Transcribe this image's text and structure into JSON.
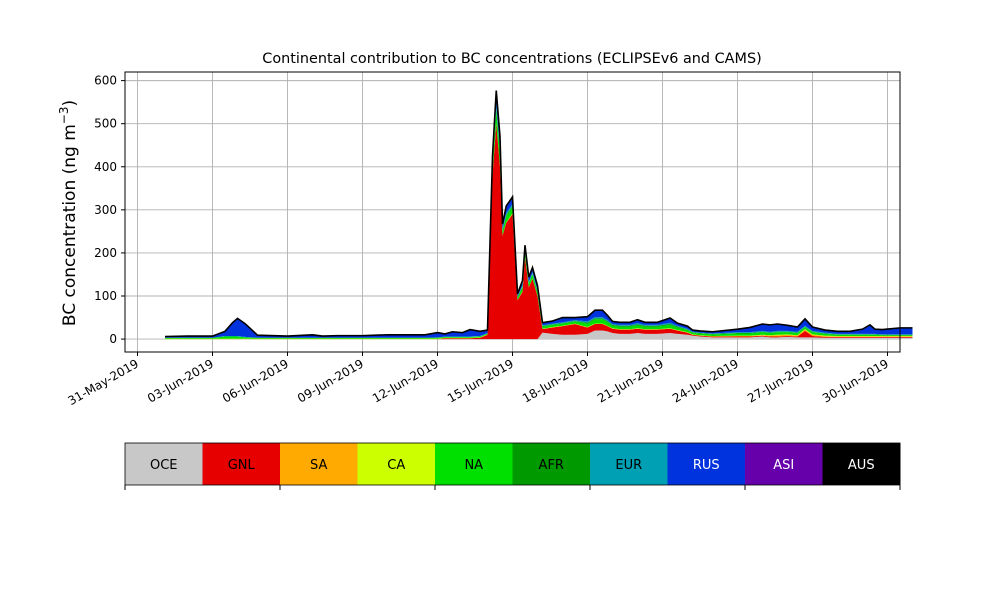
{
  "chart_data": {
    "type": "area",
    "stacked": true,
    "title": "Continental contribution to BC concentrations (ECLIPSEv6 and CAMS)",
    "ylabel": "BC concentration (ng m",
    "ylabel_sup": "−3",
    "ylabel_close": ")",
    "xlabel": "",
    "grid": true,
    "ylim": [
      -30,
      620
    ],
    "yticks": [
      0,
      100,
      200,
      300,
      400,
      500,
      600
    ],
    "xlim": [
      -0.5,
      30.5
    ],
    "xticks": [
      {
        "day": 0,
        "label": "31-May-2019"
      },
      {
        "day": 3,
        "label": "03-Jun-2019"
      },
      {
        "day": 6,
        "label": "06-Jun-2019"
      },
      {
        "day": 9,
        "label": "09-Jun-2019"
      },
      {
        "day": 12,
        "label": "12-Jun-2019"
      },
      {
        "day": 15,
        "label": "15-Jun-2019"
      },
      {
        "day": 18,
        "label": "18-Jun-2019"
      },
      {
        "day": 21,
        "label": "21-Jun-2019"
      },
      {
        "day": 24,
        "label": "24-Jun-2019"
      },
      {
        "day": 27,
        "label": "27-Jun-2019"
      },
      {
        "day": 30,
        "label": "30-Jun-2019"
      }
    ],
    "x_days": [
      1.1,
      2.0,
      3.0,
      3.5,
      3.8,
      4.0,
      4.3,
      4.8,
      6.0,
      7.0,
      7.4,
      8.0,
      9.0,
      10.0,
      11.0,
      11.5,
      12.0,
      12.3,
      12.6,
      13.0,
      13.3,
      13.7,
      14.0,
      14.2,
      14.35,
      14.5,
      14.6,
      14.75,
      15.0,
      15.2,
      15.4,
      15.5,
      15.65,
      15.8,
      16.0,
      16.2,
      16.6,
      17.0,
      17.5,
      18.0,
      18.3,
      18.6,
      18.8,
      19.0,
      19.3,
      19.7,
      20.0,
      20.3,
      20.8,
      21.3,
      21.6,
      22.0,
      22.2,
      22.5,
      23.0,
      24.0,
      24.5,
      25.0,
      25.3,
      25.6,
      26.0,
      26.4,
      26.7,
      27.0,
      27.5,
      28.0,
      28.5,
      29.0,
      29.3,
      29.5,
      29.8,
      30.5,
      31.0
    ],
    "series": [
      {
        "name": "OCE",
        "color": "#c8c8c8",
        "values": [
          0,
          0,
          0,
          0,
          0,
          0,
          0,
          0,
          0,
          0,
          0,
          0,
          0,
          0,
          0,
          0,
          0,
          0,
          0,
          0,
          0,
          0,
          0,
          0,
          0,
          0,
          0,
          0,
          0,
          0,
          0,
          0,
          0,
          0,
          0,
          15,
          12,
          10,
          10,
          12,
          20,
          20,
          18,
          14,
          12,
          12,
          14,
          12,
          12,
          14,
          12,
          10,
          8,
          6,
          4,
          4,
          4,
          6,
          4,
          4,
          5,
          4,
          4,
          4,
          3,
          3,
          3,
          3,
          3,
          3,
          3,
          3,
          3
        ]
      },
      {
        "name": "GNL",
        "color": "#e60000",
        "values": [
          0,
          0,
          0,
          0,
          0,
          0,
          0,
          0,
          0,
          0,
          0,
          0,
          0,
          0,
          0,
          0,
          0,
          2,
          2,
          2,
          2,
          3,
          10,
          380,
          500,
          400,
          240,
          270,
          290,
          90,
          110,
          190,
          120,
          140,
          100,
          8,
          15,
          20,
          25,
          15,
          15,
          15,
          12,
          10,
          10,
          10,
          10,
          10,
          10,
          10,
          8,
          5,
          2,
          2,
          2,
          2,
          2,
          2,
          2,
          2,
          2,
          2,
          15,
          3,
          2,
          2,
          2,
          2,
          2,
          2,
          2,
          2,
          2
        ]
      },
      {
        "name": "SA",
        "color": "#ffaa00",
        "values": [
          0,
          0,
          0,
          0,
          0,
          0,
          0,
          0,
          0,
          0,
          0,
          0,
          0,
          0,
          0,
          0,
          0,
          0,
          0,
          0,
          0,
          0,
          0,
          0,
          0,
          0,
          0,
          0,
          0,
          0,
          0,
          0,
          0,
          0,
          0,
          0,
          0,
          0,
          0,
          0,
          0,
          0,
          0,
          0,
          0,
          0,
          0,
          0,
          0,
          0,
          0,
          0,
          0,
          0,
          0,
          1,
          1,
          1,
          2,
          3,
          3,
          2,
          3,
          3,
          2,
          1,
          1,
          1,
          1,
          1,
          1,
          1,
          1
        ]
      },
      {
        "name": "CA",
        "color": "#ccff00",
        "values": [
          1,
          1,
          1,
          1,
          1,
          1,
          1,
          1,
          1,
          1,
          1,
          1,
          1,
          1,
          1,
          1,
          1,
          1,
          1,
          1,
          1,
          1,
          1,
          1,
          2,
          2,
          1,
          1,
          2,
          1,
          1,
          1,
          1,
          1,
          1,
          1,
          1,
          1,
          1,
          1,
          1,
          1,
          1,
          1,
          1,
          1,
          1,
          1,
          1,
          1,
          1,
          1,
          1,
          1,
          1,
          1,
          1,
          1,
          1,
          1,
          1,
          1,
          1,
          1,
          1,
          1,
          1,
          1,
          1,
          1,
          1,
          1,
          1
        ]
      },
      {
        "name": "NA",
        "color": "#00e000",
        "values": [
          2,
          2,
          2,
          5,
          5,
          5,
          3,
          2,
          2,
          2,
          2,
          2,
          2,
          2,
          2,
          2,
          2,
          2,
          2,
          2,
          2,
          2,
          2,
          20,
          30,
          30,
          10,
          15,
          15,
          5,
          10,
          10,
          8,
          10,
          8,
          5,
          5,
          5,
          5,
          8,
          10,
          10,
          8,
          6,
          6,
          6,
          7,
          6,
          6,
          8,
          6,
          5,
          4,
          4,
          4,
          5,
          5,
          6,
          5,
          6,
          5,
          5,
          5,
          5,
          4,
          3,
          3,
          3,
          3,
          3,
          2,
          2,
          2
        ]
      },
      {
        "name": "AFR",
        "color": "#009900",
        "values": [
          0,
          0,
          0,
          0,
          0,
          0,
          0,
          0,
          0,
          0,
          0,
          0,
          0,
          0,
          0,
          0,
          0,
          0,
          0,
          0,
          0,
          0,
          0,
          2,
          3,
          3,
          1,
          2,
          2,
          1,
          1,
          2,
          1,
          1,
          1,
          1,
          1,
          1,
          1,
          2,
          2,
          2,
          2,
          2,
          2,
          2,
          2,
          2,
          2,
          2,
          2,
          1,
          1,
          1,
          1,
          1,
          1,
          1,
          1,
          1,
          1,
          1,
          1,
          1,
          1,
          1,
          1,
          1,
          1,
          1,
          1,
          1,
          1
        ]
      },
      {
        "name": "EUR",
        "color": "#00a0b4",
        "values": [
          0,
          0,
          0,
          1,
          1,
          1,
          1,
          0,
          0,
          0,
          0,
          0,
          0,
          0,
          0,
          0,
          1,
          1,
          1,
          1,
          1,
          1,
          1,
          5,
          10,
          8,
          4,
          5,
          5,
          2,
          3,
          4,
          3,
          3,
          3,
          2,
          2,
          2,
          2,
          3,
          3,
          3,
          3,
          2,
          2,
          2,
          3,
          2,
          2,
          3,
          2,
          2,
          1,
          1,
          1,
          2,
          2,
          2,
          2,
          2,
          2,
          2,
          2,
          2,
          2,
          1,
          1,
          1,
          1,
          1,
          1,
          1,
          1
        ]
      },
      {
        "name": "RUS",
        "color": "#0033dd",
        "values": [
          2,
          3,
          3,
          10,
          30,
          40,
          30,
          5,
          3,
          6,
          3,
          4,
          4,
          6,
          6,
          6,
          10,
          5,
          10,
          8,
          15,
          10,
          6,
          15,
          30,
          25,
          10,
          15,
          15,
          5,
          10,
          10,
          10,
          10,
          10,
          5,
          5,
          10,
          5,
          10,
          15,
          15,
          10,
          5,
          5,
          5,
          7,
          5,
          5,
          10,
          5,
          5,
          3,
          3,
          3,
          6,
          10,
          15,
          15,
          15,
          12,
          10,
          15,
          8,
          5,
          5,
          5,
          10,
          20,
          10,
          10,
          14,
          14
        ]
      },
      {
        "name": "ASI",
        "color": "#6600aa",
        "values": [
          1,
          1,
          1,
          1,
          1,
          1,
          1,
          1,
          1,
          1,
          1,
          1,
          1,
          1,
          1,
          1,
          1,
          1,
          1,
          1,
          1,
          1,
          1,
          2,
          2,
          2,
          1,
          1,
          1,
          1,
          1,
          1,
          1,
          1,
          1,
          1,
          1,
          1,
          1,
          1,
          1,
          1,
          1,
          1,
          1,
          1,
          1,
          1,
          1,
          1,
          1,
          1,
          1,
          1,
          1,
          1,
          1,
          1,
          1,
          1,
          1,
          1,
          1,
          1,
          1,
          1,
          1,
          1,
          1,
          1,
          1,
          1,
          1
        ]
      },
      {
        "name": "AUS",
        "color": "#000000",
        "values": [
          0,
          0,
          0,
          0,
          0,
          0,
          0,
          0,
          0,
          0,
          0,
          0,
          0,
          0,
          0,
          0,
          0,
          0,
          0,
          0,
          0,
          0,
          0,
          0,
          0,
          0,
          0,
          0,
          0,
          0,
          0,
          0,
          0,
          0,
          0,
          0,
          0,
          0,
          0,
          0,
          0,
          0,
          0,
          0,
          0,
          0,
          0,
          0,
          0,
          0,
          0,
          0,
          0,
          0,
          0,
          0,
          0,
          0,
          0,
          0,
          0,
          0,
          0,
          0,
          0,
          0,
          0,
          0,
          0,
          0,
          0,
          0,
          0
        ]
      }
    ],
    "legend": {
      "placement": "bottom",
      "style": "colorbar"
    }
  }
}
